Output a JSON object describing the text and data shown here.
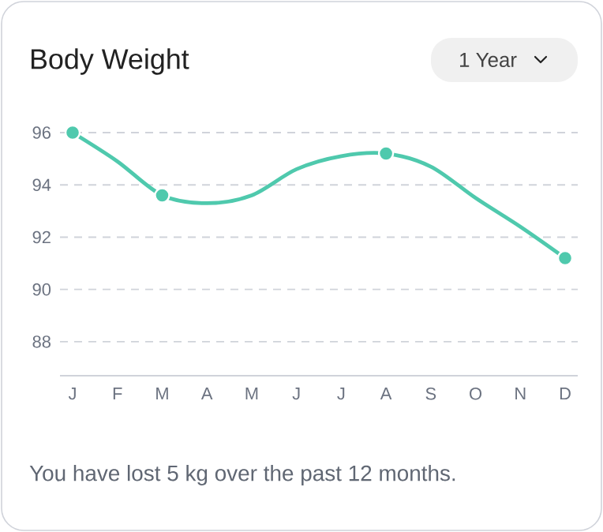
{
  "chart_data": {
    "type": "line",
    "title": "Body Weight",
    "annotations": [
      "1 Year",
      "You have lost 5 kg over the past 12 months."
    ],
    "categories": [
      "J",
      "F",
      "M",
      "A",
      "M",
      "J",
      "J",
      "A",
      "S",
      "O",
      "N",
      "D"
    ],
    "series": [
      {
        "color": "#4fc9ad",
        "marker": "none",
        "values": [
          96.0,
          94.9,
          93.6,
          93.3,
          93.6,
          94.6,
          95.1,
          95.2,
          94.7,
          93.5,
          92.4,
          91.2
        ]
      },
      {
        "type": "scatter",
        "color": "#4fc9ad",
        "marker": "circle",
        "values": [
          96.0,
          null,
          93.6,
          null,
          null,
          null,
          null,
          95.2,
          null,
          null,
          null,
          91.2
        ]
      }
    ],
    "ylim": [
      86.7,
      96
    ],
    "yticks": [
      88,
      90,
      92,
      94,
      96
    ],
    "grid": "y"
  }
}
